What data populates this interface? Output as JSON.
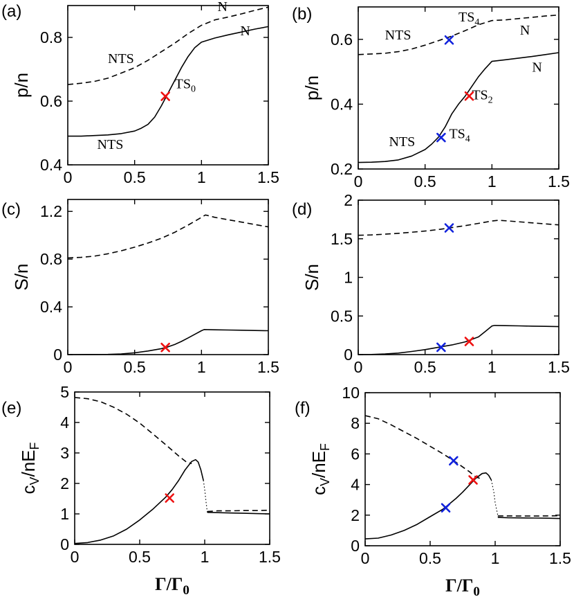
{
  "figure": {
    "xlabel_main": "Γ/Γ",
    "xlabel_sub": "0"
  },
  "colors": {
    "red": "#ee1111",
    "blue": "#1122dd",
    "line": "#000000"
  },
  "chart_data": [
    {
      "id": "a",
      "type": "line",
      "panel_label": "(a)",
      "ylabel": "p/n",
      "ylabel_sub": "",
      "xlim": [
        0,
        1.5
      ],
      "ylim": [
        0.4,
        0.9
      ],
      "xticks": [
        "0",
        "0.5",
        "1",
        "1.5"
      ],
      "xtick_values": [
        0,
        0.5,
        1,
        1.5
      ],
      "yticks": [
        "0.4",
        "0.6",
        "0.8"
      ],
      "ytick_values": [
        0.4,
        0.6,
        0.8
      ],
      "show_xticklabels": true,
      "show_xlabel": false,
      "series": [
        {
          "style": "dashed",
          "x": [
            0,
            0.1,
            0.2,
            0.3,
            0.4,
            0.5,
            0.6,
            0.7,
            0.8,
            0.9,
            1.0,
            1.1,
            1.2,
            1.3,
            1.4,
            1.5
          ],
          "y": [
            0.652,
            0.656,
            0.662,
            0.672,
            0.688,
            0.705,
            0.728,
            0.755,
            0.782,
            0.812,
            0.838,
            0.855,
            0.864,
            0.874,
            0.885,
            0.895
          ]
        },
        {
          "style": "solid",
          "x": [
            0,
            0.1,
            0.2,
            0.3,
            0.4,
            0.5,
            0.55,
            0.6,
            0.65,
            0.7,
            0.75,
            0.8,
            0.85,
            0.9,
            0.95,
            1.0,
            1.1,
            1.2,
            1.3,
            1.4,
            1.5
          ],
          "y": [
            0.49,
            0.49,
            0.492,
            0.494,
            0.498,
            0.506,
            0.515,
            0.527,
            0.55,
            0.585,
            0.625,
            0.665,
            0.705,
            0.74,
            0.768,
            0.785,
            0.798,
            0.808,
            0.817,
            0.826,
            0.834
          ]
        }
      ],
      "markers": [
        {
          "x": 0.73,
          "y": 0.615,
          "color": "red"
        }
      ],
      "annotations": [
        {
          "text": "N",
          "sub": "",
          "x": 1.12,
          "y": 0.883
        },
        {
          "text": "NTS",
          "sub": "",
          "x": 0.3,
          "y": 0.72
        },
        {
          "text": "TS",
          "sub": "0",
          "x": 0.8,
          "y": 0.64
        },
        {
          "text": "N",
          "sub": "",
          "x": 1.29,
          "y": 0.807
        },
        {
          "text": "NTS",
          "sub": "",
          "x": 0.22,
          "y": 0.45
        }
      ]
    },
    {
      "id": "b",
      "type": "line",
      "panel_label": "(b)",
      "ylabel": "p/n",
      "ylabel_sub": "",
      "xlim": [
        0,
        1.5
      ],
      "ylim": [
        0.2,
        0.7
      ],
      "xticks": [
        "0",
        "0.5",
        "1",
        "1.5"
      ],
      "xtick_values": [
        0,
        0.5,
        1,
        1.5
      ],
      "yticks": [
        "0.2",
        "0.4",
        "0.6"
      ],
      "ytick_values": [
        0.2,
        0.4,
        0.6
      ],
      "show_xticklabels": true,
      "show_xlabel": false,
      "series": [
        {
          "style": "dashed",
          "x": [
            0,
            0.1,
            0.2,
            0.3,
            0.4,
            0.5,
            0.6,
            0.7,
            0.8,
            0.9,
            1.0,
            1.1,
            1.2,
            1.3,
            1.4,
            1.5
          ],
          "y": [
            0.553,
            0.555,
            0.557,
            0.562,
            0.57,
            0.582,
            0.596,
            0.61,
            0.627,
            0.645,
            0.658,
            0.66,
            0.664,
            0.668,
            0.672,
            0.675
          ]
        },
        {
          "style": "solid",
          "x": [
            0,
            0.1,
            0.2,
            0.3,
            0.4,
            0.5,
            0.55,
            0.6,
            0.65,
            0.7,
            0.75,
            0.8,
            0.85,
            0.9,
            0.95,
            1.0,
            1.1,
            1.2,
            1.3,
            1.4,
            1.5
          ],
          "y": [
            0.22,
            0.221,
            0.223,
            0.228,
            0.24,
            0.26,
            0.277,
            0.298,
            0.33,
            0.37,
            0.4,
            0.425,
            0.455,
            0.485,
            0.51,
            0.532,
            0.537,
            0.542,
            0.547,
            0.553,
            0.559
          ]
        }
      ],
      "markers": [
        {
          "x": 0.68,
          "y": 0.598,
          "color": "blue"
        },
        {
          "x": 0.83,
          "y": 0.425,
          "color": "red"
        },
        {
          "x": 0.62,
          "y": 0.297,
          "color": "blue"
        }
      ],
      "annotations": [
        {
          "text": "TS",
          "sub": "4",
          "x": 0.75,
          "y": 0.655
        },
        {
          "text": "N",
          "sub": "",
          "x": 1.21,
          "y": 0.615
        },
        {
          "text": "NTS",
          "sub": "",
          "x": 0.2,
          "y": 0.6
        },
        {
          "text": "N",
          "sub": "",
          "x": 1.3,
          "y": 0.5
        },
        {
          "text": "TS",
          "sub": "2",
          "x": 0.85,
          "y": 0.415
        },
        {
          "text": "NTS",
          "sub": "",
          "x": 0.23,
          "y": 0.27
        },
        {
          "text": "TS",
          "sub": "4",
          "x": 0.68,
          "y": 0.295
        }
      ]
    },
    {
      "id": "c",
      "type": "line",
      "panel_label": "(c)",
      "ylabel": "S/n",
      "ylabel_sub": "",
      "xlim": [
        0,
        1.5
      ],
      "ylim": [
        0,
        1.3
      ],
      "xticks": [
        "0",
        "0.5",
        "1",
        "1.5"
      ],
      "xtick_values": [
        0,
        0.5,
        1,
        1.5
      ],
      "yticks": [
        "0",
        "0.4",
        "0.8",
        "1.2"
      ],
      "ytick_values": [
        0,
        0.4,
        0.8,
        1.2
      ],
      "show_xticklabels": true,
      "show_xlabel": false,
      "series": [
        {
          "style": "dashed",
          "x": [
            0,
            0.1,
            0.2,
            0.3,
            0.4,
            0.5,
            0.6,
            0.7,
            0.8,
            0.9,
            1.0,
            1.03,
            1.1,
            1.2,
            1.3,
            1.4,
            1.5
          ],
          "y": [
            0.81,
            0.815,
            0.825,
            0.845,
            0.87,
            0.9,
            0.935,
            0.975,
            1.025,
            1.085,
            1.15,
            1.17,
            1.15,
            1.13,
            1.11,
            1.09,
            1.07
          ]
        },
        {
          "style": "solid",
          "x": [
            0,
            0.3,
            0.4,
            0.5,
            0.6,
            0.7,
            0.75,
            0.8,
            0.85,
            0.9,
            0.95,
            1.0,
            1.02,
            1.1,
            1.2,
            1.3,
            1.4,
            1.5
          ],
          "y": [
            0,
            0.002,
            0.006,
            0.015,
            0.03,
            0.05,
            0.065,
            0.085,
            0.11,
            0.14,
            0.17,
            0.2,
            0.21,
            0.208,
            0.206,
            0.204,
            0.202,
            0.2
          ]
        }
      ],
      "markers": [
        {
          "x": 0.73,
          "y": 0.06,
          "color": "red"
        }
      ],
      "annotations": []
    },
    {
      "id": "d",
      "type": "line",
      "panel_label": "(d)",
      "ylabel": "S/n",
      "ylabel_sub": "",
      "xlim": [
        0,
        1.5
      ],
      "ylim": [
        0,
        2
      ],
      "xticks": [
        "0",
        "0.5",
        "1",
        "1.5"
      ],
      "xtick_values": [
        0,
        0.5,
        1,
        1.5
      ],
      "yticks": [
        "0",
        "0.5",
        "1",
        "1.5",
        "2"
      ],
      "ytick_values": [
        0,
        0.5,
        1,
        1.5,
        2
      ],
      "show_xticklabels": true,
      "show_xlabel": false,
      "series": [
        {
          "style": "dashed",
          "x": [
            0,
            0.1,
            0.2,
            0.3,
            0.4,
            0.5,
            0.6,
            0.7,
            0.8,
            0.9,
            1.0,
            1.05,
            1.2,
            1.35,
            1.5
          ],
          "y": [
            1.545,
            1.55,
            1.56,
            1.57,
            1.585,
            1.6,
            1.62,
            1.645,
            1.67,
            1.7,
            1.73,
            1.74,
            1.72,
            1.7,
            1.68
          ]
        },
        {
          "style": "solid",
          "x": [
            0,
            0.1,
            0.2,
            0.3,
            0.4,
            0.5,
            0.6,
            0.7,
            0.8,
            0.9,
            0.95,
            1.0,
            1.02,
            1.1,
            1.2,
            1.3,
            1.4,
            1.5
          ],
          "y": [
            0,
            0.002,
            0.008,
            0.02,
            0.04,
            0.065,
            0.095,
            0.125,
            0.165,
            0.23,
            0.3,
            0.37,
            0.378,
            0.375,
            0.372,
            0.369,
            0.366,
            0.362
          ]
        }
      ],
      "markers": [
        {
          "x": 0.68,
          "y": 1.64,
          "color": "blue"
        },
        {
          "x": 0.62,
          "y": 0.095,
          "color": "blue"
        },
        {
          "x": 0.83,
          "y": 0.17,
          "color": "red"
        }
      ],
      "annotations": []
    },
    {
      "id": "e",
      "type": "line",
      "panel_label": "(e)",
      "ylabel": "c",
      "ylabel_sub": "V",
      "ylabel_rest": "/nE",
      "ylabel_sub2": "F",
      "xlim": [
        0,
        1.5
      ],
      "ylim": [
        0,
        5
      ],
      "xticks": [
        "0",
        "0.5",
        "1",
        "1.5"
      ],
      "xtick_values": [
        0,
        0.5,
        1,
        1.5
      ],
      "yticks": [
        "0",
        "1",
        "2",
        "3",
        "4",
        "5"
      ],
      "ytick_values": [
        0,
        1,
        2,
        3,
        4,
        5
      ],
      "show_xticklabels": true,
      "show_xlabel": true,
      "series": [
        {
          "style": "dashed",
          "x": [
            0,
            0.1,
            0.2,
            0.3,
            0.4,
            0.5,
            0.6,
            0.7,
            0.8,
            0.86,
            0.9
          ],
          "y": [
            4.82,
            4.78,
            4.68,
            4.5,
            4.27,
            3.98,
            3.63,
            3.27,
            2.9,
            2.7,
            2.65
          ]
        },
        {
          "style": "solid",
          "x": [
            0,
            0.1,
            0.2,
            0.3,
            0.4,
            0.5,
            0.6,
            0.7,
            0.75,
            0.8,
            0.85,
            0.9,
            0.93,
            0.95,
            0.97,
            0.99
          ],
          "y": [
            0.03,
            0.06,
            0.14,
            0.28,
            0.5,
            0.8,
            1.15,
            1.55,
            1.8,
            2.1,
            2.45,
            2.72,
            2.78,
            2.7,
            2.45,
            2.1
          ]
        },
        {
          "style": "dotted",
          "x": [
            0.99,
            1.0,
            1.01,
            1.02
          ],
          "y": [
            2.1,
            1.8,
            1.4,
            1.05
          ]
        },
        {
          "style": "dashed",
          "x": [
            1.02,
            1.1,
            1.2,
            1.3,
            1.4,
            1.5
          ],
          "y": [
            1.08,
            1.1,
            1.1,
            1.11,
            1.11,
            1.12
          ]
        },
        {
          "style": "solid",
          "x": [
            1.02,
            1.1,
            1.2,
            1.3,
            1.4,
            1.5
          ],
          "y": [
            1.05,
            1.04,
            1.03,
            1.02,
            1.01,
            1.0
          ]
        }
      ],
      "markers": [
        {
          "x": 0.73,
          "y": 1.52,
          "color": "red"
        }
      ],
      "annotations": []
    },
    {
      "id": "f",
      "type": "line",
      "panel_label": "(f)",
      "ylabel": "c",
      "ylabel_sub": "V",
      "ylabel_rest": "/nE",
      "ylabel_sub2": "F",
      "xlim": [
        0,
        1.5
      ],
      "ylim": [
        0,
        10
      ],
      "xticks": [
        "0",
        "0.5",
        "1",
        "1.5"
      ],
      "xtick_values": [
        0,
        0.5,
        1,
        1.5
      ],
      "yticks": [
        "0",
        "2",
        "4",
        "6",
        "8",
        "10"
      ],
      "ytick_values": [
        0,
        2,
        4,
        6,
        8,
        10
      ],
      "show_xticklabels": true,
      "show_xlabel": true,
      "series": [
        {
          "style": "dashed",
          "x": [
            0,
            0.1,
            0.2,
            0.3,
            0.4,
            0.5,
            0.6,
            0.7,
            0.8,
            0.85,
            0.9
          ],
          "y": [
            8.5,
            8.3,
            7.9,
            7.45,
            7.0,
            6.5,
            6.0,
            5.45,
            4.85,
            4.5,
            4.35
          ]
        },
        {
          "style": "solid",
          "x": [
            0,
            0.1,
            0.2,
            0.3,
            0.4,
            0.5,
            0.6,
            0.7,
            0.75,
            0.8,
            0.85,
            0.9,
            0.93,
            0.95,
            0.97
          ],
          "y": [
            0.45,
            0.5,
            0.7,
            1.0,
            1.4,
            1.9,
            2.4,
            3.1,
            3.5,
            3.95,
            4.4,
            4.72,
            4.76,
            4.6,
            4.3
          ]
        },
        {
          "style": "dotted",
          "x": [
            0.97,
            0.99,
            1.0,
            1.02
          ],
          "y": [
            4.3,
            3.5,
            2.8,
            2.0
          ]
        },
        {
          "style": "dashed",
          "x": [
            1.02,
            1.1,
            1.2,
            1.3,
            1.4,
            1.5
          ],
          "y": [
            1.95,
            1.95,
            1.94,
            1.94,
            1.95,
            1.96
          ]
        },
        {
          "style": "solid",
          "x": [
            1.02,
            1.1,
            1.2,
            1.3,
            1.4,
            1.5
          ],
          "y": [
            1.85,
            1.83,
            1.82,
            1.81,
            1.8,
            1.78
          ]
        }
      ],
      "markers": [
        {
          "x": 0.68,
          "y": 5.55,
          "color": "blue"
        },
        {
          "x": 0.83,
          "y": 4.3,
          "color": "red"
        },
        {
          "x": 0.62,
          "y": 2.48,
          "color": "blue"
        }
      ],
      "annotations": []
    }
  ]
}
